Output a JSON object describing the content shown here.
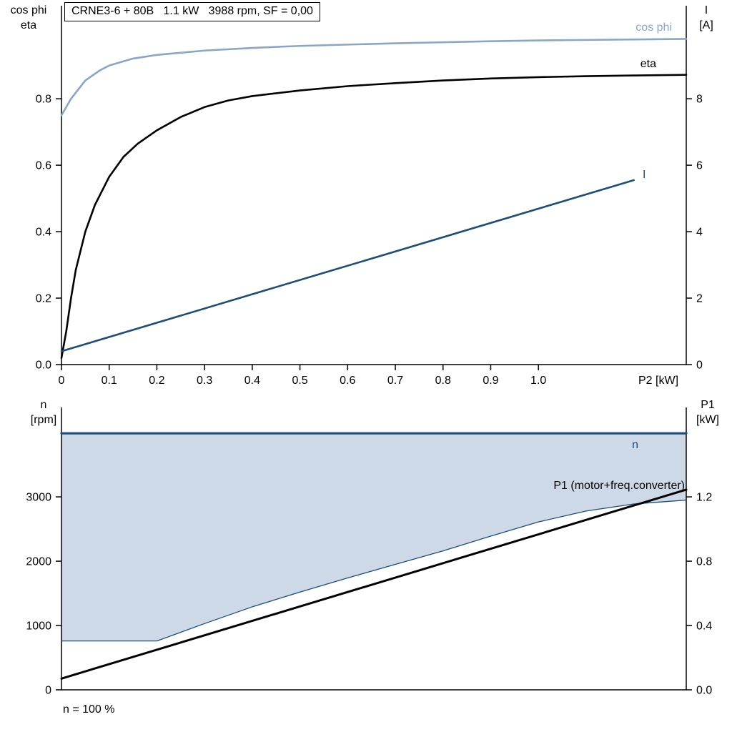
{
  "title_box": {
    "text": "CRNE3-6 + 80B   1.1 kW   3988 rpm, SF = 0,00"
  },
  "footer": {
    "note": "n = 100 %"
  },
  "colors": {
    "light_blue": "#8aa6c7",
    "dark_blue": "#1d4e79",
    "black": "#000000",
    "fill": "#cdd9e6"
  },
  "chart_data": [
    {
      "type": "line",
      "name": "motor-performance",
      "title": "CRNE3-6 + 80B   1.1 kW   3988 rpm, SF = 0,00",
      "y_left": {
        "label_lines": [
          "cos phi",
          "eta"
        ],
        "ticks": [
          "0.0",
          "0.2",
          "0.4",
          "0.6",
          "0.8"
        ],
        "range": [
          0,
          1.08
        ]
      },
      "y_right": {
        "label_lines": [
          "I",
          "[A]"
        ],
        "ticks": [
          "0",
          "2",
          "4",
          "6",
          "8"
        ],
        "range": [
          0,
          10.8
        ]
      },
      "x": {
        "label": "P2 [kW]",
        "ticks": [
          "0",
          "0.1",
          "0.2",
          "0.3",
          "0.4",
          "0.5",
          "0.6",
          "0.7",
          "0.8",
          "0.9",
          "1.0"
        ],
        "range": [
          0,
          1.31
        ]
      },
      "series": [
        {
          "name": "cos phi",
          "axis": "left",
          "color_key": "light_blue",
          "width": 2.6,
          "points": [
            [
              0,
              0.75
            ],
            [
              0.02,
              0.8
            ],
            [
              0.05,
              0.855
            ],
            [
              0.08,
              0.885
            ],
            [
              0.1,
              0.9
            ],
            [
              0.15,
              0.921
            ],
            [
              0.2,
              0.932
            ],
            [
              0.3,
              0.945
            ],
            [
              0.4,
              0.953
            ],
            [
              0.5,
              0.959
            ],
            [
              0.6,
              0.963
            ],
            [
              0.7,
              0.967
            ],
            [
              0.8,
              0.97
            ],
            [
              0.9,
              0.973
            ],
            [
              1.0,
              0.9755
            ],
            [
              1.1,
              0.977
            ],
            [
              1.2,
              0.9785
            ],
            [
              1.31,
              0.98
            ]
          ]
        },
        {
          "name": "eta",
          "axis": "left",
          "color_key": "black",
          "width": 2.6,
          "points": [
            [
              0,
              0.02
            ],
            [
              0.01,
              0.1
            ],
            [
              0.02,
              0.2
            ],
            [
              0.03,
              0.285
            ],
            [
              0.05,
              0.4
            ],
            [
              0.07,
              0.48
            ],
            [
              0.1,
              0.565
            ],
            [
              0.13,
              0.625
            ],
            [
              0.16,
              0.665
            ],
            [
              0.2,
              0.705
            ],
            [
              0.25,
              0.745
            ],
            [
              0.3,
              0.775
            ],
            [
              0.35,
              0.795
            ],
            [
              0.4,
              0.808
            ],
            [
              0.5,
              0.825
            ],
            [
              0.6,
              0.838
            ],
            [
              0.7,
              0.847
            ],
            [
              0.8,
              0.855
            ],
            [
              0.9,
              0.861
            ],
            [
              1.0,
              0.865
            ],
            [
              1.1,
              0.868
            ],
            [
              1.2,
              0.87
            ],
            [
              1.31,
              0.872
            ]
          ]
        },
        {
          "name": "I",
          "axis": "right",
          "color_key": "dark_blue",
          "width": 2.6,
          "points": [
            [
              0,
              0.4
            ],
            [
              1.2,
              5.55
            ]
          ]
        }
      ]
    },
    {
      "type": "line",
      "name": "speed-and-power",
      "y_left": {
        "label_lines": [
          "n",
          "[rpm]"
        ],
        "ticks": [
          "0",
          "1000",
          "2000",
          "3000"
        ],
        "range": [
          0,
          4390
        ]
      },
      "y_right": {
        "label_lines": [
          "P1",
          "[kW]"
        ],
        "ticks": [
          "0.0",
          "0.4",
          "0.8",
          "1.2"
        ],
        "range": [
          0,
          1.756
        ]
      },
      "x": {
        "label": "",
        "ticks": [],
        "range": [
          0,
          1.31
        ]
      },
      "series": [
        {
          "name": "n",
          "axis": "left",
          "color_key": "dark_blue",
          "width": 3.2,
          "points": [
            [
              0,
              3988
            ],
            [
              1.31,
              3988
            ]
          ]
        },
        {
          "name": "speed range lower limit",
          "axis": "left",
          "color_key": "dark_blue",
          "width": 1.3,
          "fill_to": "n",
          "points": [
            [
              0,
              760
            ],
            [
              0.2,
              760
            ],
            [
              0.23,
              840
            ],
            [
              0.3,
              1030
            ],
            [
              0.4,
              1290
            ],
            [
              0.5,
              1520
            ],
            [
              0.6,
              1740
            ],
            [
              0.7,
              1950
            ],
            [
              0.8,
              2160
            ],
            [
              0.9,
              2390
            ],
            [
              1.0,
              2610
            ],
            [
              1.1,
              2780
            ],
            [
              1.2,
              2890
            ],
            [
              1.31,
              2950
            ]
          ]
        },
        {
          "name": "P1 (motor+freq.converter)",
          "axis": "right",
          "color_key": "black",
          "width": 3,
          "points": [
            [
              0,
              0.07
            ],
            [
              1.31,
              1.245
            ]
          ]
        }
      ]
    }
  ]
}
